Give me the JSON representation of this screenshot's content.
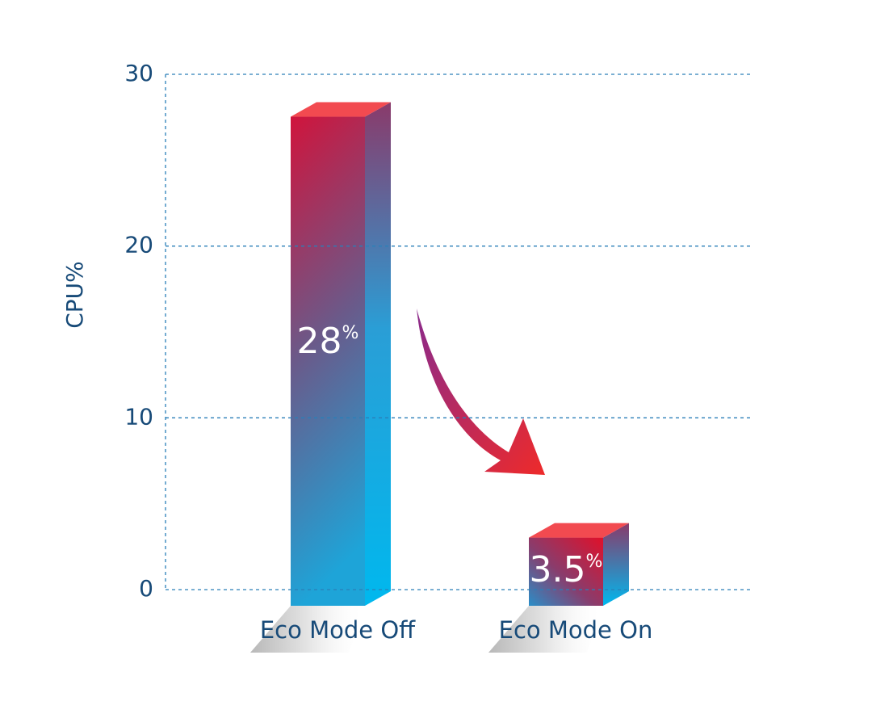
{
  "chart_data": {
    "type": "bar3d",
    "y_label": "CPU%",
    "categories": [
      "Eco Mode Off",
      "Eco Mode On"
    ],
    "values": [
      28,
      3.5
    ],
    "value_labels": [
      "28%",
      "3.5%"
    ],
    "ylim": [
      0,
      30
    ],
    "yticks": [
      0,
      10,
      20,
      30
    ],
    "grid": true
  }
}
